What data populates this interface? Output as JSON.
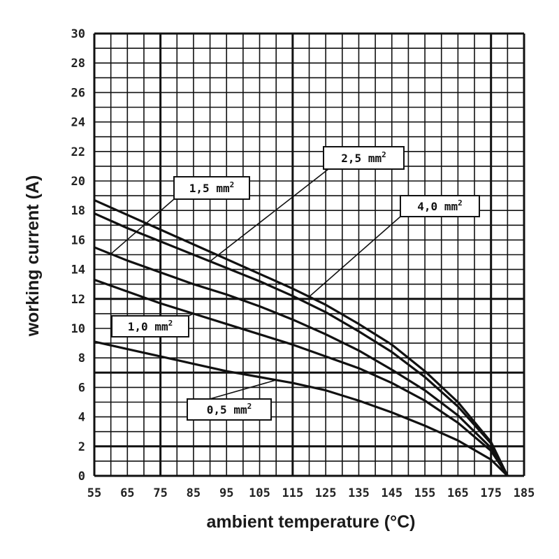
{
  "chart_data": {
    "type": "line",
    "title": "",
    "xlabel": "ambient temperature (°C)",
    "ylabel": "working current (A)",
    "xlim": [
      55,
      185
    ],
    "ylim": [
      0,
      30
    ],
    "x_ticks": [
      55,
      65,
      75,
      85,
      95,
      105,
      115,
      125,
      135,
      145,
      155,
      165,
      175,
      185
    ],
    "y_ticks": [
      0,
      2,
      4,
      6,
      8,
      10,
      12,
      14,
      16,
      18,
      20,
      22,
      24,
      26,
      28,
      30
    ],
    "grid": true,
    "series": [
      {
        "name": "0,5 mm²",
        "x": [
          55,
          65,
          75,
          85,
          95,
          105,
          115,
          125,
          135,
          145,
          155,
          165,
          175,
          180
        ],
        "y": [
          9.1,
          8.6,
          8.1,
          7.6,
          7.1,
          6.7,
          6.3,
          5.8,
          5.1,
          4.3,
          3.4,
          2.4,
          1.1,
          0
        ]
      },
      {
        "name": "1,0 mm²",
        "x": [
          55,
          65,
          75,
          85,
          95,
          105,
          115,
          125,
          135,
          145,
          155,
          165,
          175,
          180
        ],
        "y": [
          13.3,
          12.5,
          11.7,
          11.0,
          10.3,
          9.6,
          8.9,
          8.1,
          7.3,
          6.3,
          5.1,
          3.6,
          1.7,
          0
        ]
      },
      {
        "name": "1,5 mm²",
        "x": [
          55,
          65,
          75,
          85,
          95,
          105,
          115,
          125,
          135,
          145,
          155,
          165,
          175,
          180
        ],
        "y": [
          15.5,
          14.6,
          13.8,
          13.0,
          12.3,
          11.5,
          10.6,
          9.6,
          8.5,
          7.2,
          5.8,
          4.1,
          1.9,
          0
        ]
      },
      {
        "name": "2,5 mm²",
        "x": [
          55,
          65,
          75,
          85,
          95,
          105,
          115,
          125,
          135,
          145,
          155,
          165,
          175,
          180
        ],
        "y": [
          17.8,
          16.8,
          15.9,
          15.0,
          14.1,
          13.2,
          12.2,
          11.1,
          9.8,
          8.4,
          6.7,
          4.7,
          2.2,
          0
        ]
      },
      {
        "name": "4,0 mm²",
        "x": [
          55,
          65,
          75,
          85,
          95,
          105,
          115,
          125,
          135,
          145,
          155,
          165,
          175,
          180
        ],
        "y": [
          18.7,
          17.7,
          16.7,
          15.7,
          14.7,
          13.7,
          12.7,
          11.6,
          10.3,
          8.9,
          7.1,
          5.0,
          2.3,
          0
        ]
      }
    ],
    "annotations": [
      {
        "text": "1,5 mm",
        "sup": "2",
        "series": "1,5 mm²",
        "at_x": 60
      },
      {
        "text": "2,5 mm",
        "sup": "2",
        "series": "2,5 mm²",
        "at_x": 90
      },
      {
        "text": "4,0 mm",
        "sup": "2",
        "series": "4,0 mm²",
        "at_x": 120
      },
      {
        "text": "1,0 mm",
        "sup": "2",
        "series": "1,0 mm²",
        "at_x": 85
      },
      {
        "text": "0,5 mm",
        "sup": "2",
        "series": "0,5 mm²",
        "at_x": 110
      }
    ],
    "colors": {
      "grid": "#111111",
      "curve": "#111111",
      "background": "#ffffff"
    }
  }
}
